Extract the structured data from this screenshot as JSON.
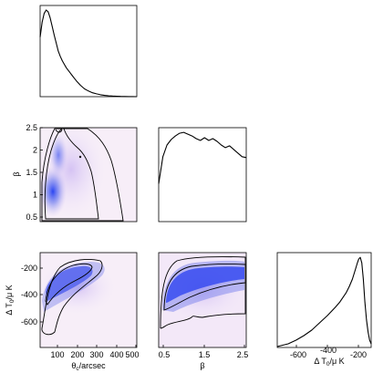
{
  "chart_data": [
    {
      "type": "line",
      "panel": "theta_c marginal",
      "xlim": [
        20,
        500
      ],
      "x": [
        20,
        30,
        40,
        50,
        60,
        70,
        80,
        90,
        100,
        110,
        120,
        130,
        140,
        150,
        160,
        170,
        180,
        190,
        200,
        220,
        240,
        260,
        280,
        300,
        320,
        340,
        360,
        380,
        400,
        420,
        440,
        460,
        480,
        500
      ],
      "y": [
        0.68,
        0.85,
        0.95,
        0.99,
        0.97,
        0.9,
        0.8,
        0.7,
        0.61,
        0.52,
        0.46,
        0.41,
        0.37,
        0.33,
        0.3,
        0.27,
        0.24,
        0.21,
        0.18,
        0.13,
        0.09,
        0.065,
        0.045,
        0.032,
        0.022,
        0.015,
        0.01,
        0.007,
        0.005,
        0.003,
        0.002,
        0.0015,
        0.001,
        0.0005
      ]
    },
    {
      "type": "heatmap",
      "panel": "beta vs theta_c",
      "xlim": [
        20,
        500
      ],
      "ylim": [
        0.4,
        2.5
      ],
      "ylabel": "β",
      "yticks": [
        "0.5",
        "1",
        "1.5",
        "2",
        "2.5"
      ]
    },
    {
      "type": "line",
      "panel": "beta marginal",
      "xlim": [
        0.4,
        2.5
      ],
      "x": [
        0.4,
        0.5,
        0.6,
        0.7,
        0.8,
        0.9,
        1.0,
        1.1,
        1.2,
        1.3,
        1.4,
        1.5,
        1.6,
        1.7,
        1.8,
        1.9,
        2.0,
        2.1,
        2.2,
        2.3,
        2.4,
        2.5
      ],
      "y": [
        0.42,
        0.72,
        0.85,
        0.91,
        0.95,
        0.98,
        0.99,
        0.97,
        0.95,
        0.92,
        0.9,
        0.93,
        0.9,
        0.92,
        0.89,
        0.85,
        0.82,
        0.84,
        0.8,
        0.76,
        0.72,
        0.71
      ]
    },
    {
      "type": "heatmap",
      "panel": "Delta T0 vs theta_c",
      "xlim": [
        20,
        500
      ],
      "ylim": [
        -700,
        -120
      ],
      "xlabel": "θ",
      "xlabel_sub": "c",
      "xlabel_suffix": "/arcsec",
      "ylabel": "Δ T",
      "ylabel_sub": "0",
      "ylabel_suffix": "/μ K",
      "xticks": [
        "100",
        "200",
        "300",
        "400",
        "500"
      ],
      "yticks": [
        "-200",
        "-400",
        "-600"
      ]
    },
    {
      "type": "heatmap",
      "panel": "Delta T0 vs beta",
      "xlim": [
        0.4,
        2.5
      ],
      "ylim": [
        -700,
        -120
      ],
      "xlabel": "β",
      "xticks": [
        "0.5",
        "1.5",
        "2.5"
      ]
    },
    {
      "type": "line",
      "panel": "Delta T0 marginal",
      "xlim": [
        -720,
        -120
      ],
      "xlabel": "Δ T",
      "xlabel_sub": "0",
      "xlabel_suffix": "/μ K",
      "xticks": [
        "-600",
        "-400",
        "-200"
      ],
      "x": [
        -720,
        -650,
        -600,
        -550,
        -500,
        -450,
        -400,
        -350,
        -320,
        -300,
        -280,
        -260,
        -240,
        -220,
        -210,
        -200,
        -190,
        -180,
        -170,
        -160,
        -150,
        -140,
        -130,
        -120
      ],
      "y": [
        0.01,
        0.04,
        0.08,
        0.13,
        0.19,
        0.27,
        0.35,
        0.44,
        0.5,
        0.55,
        0.6,
        0.67,
        0.75,
        0.86,
        0.92,
        0.97,
        0.99,
        0.93,
        0.75,
        0.5,
        0.3,
        0.17,
        0.08,
        0.04
      ]
    }
  ]
}
